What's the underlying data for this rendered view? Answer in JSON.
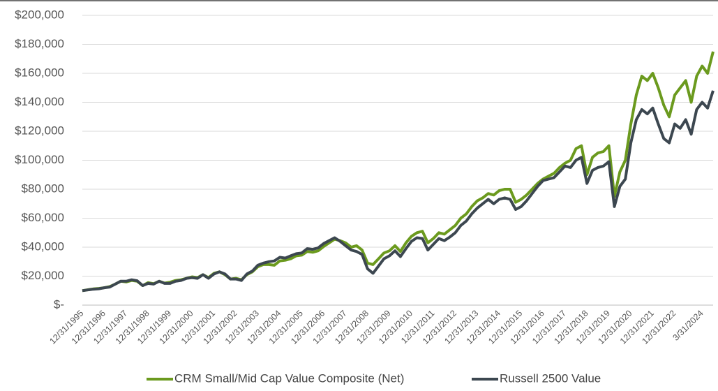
{
  "chart_data": {
    "type": "line",
    "categories": [
      "12/31/1995",
      null,
      null,
      null,
      "12/31/1996",
      null,
      null,
      null,
      "12/31/1997",
      null,
      null,
      null,
      "12/31/1998",
      null,
      null,
      null,
      "12/31/1999",
      null,
      null,
      null,
      "12/31/2000",
      null,
      null,
      null,
      "12/31/2001",
      null,
      null,
      null,
      "12/31/2002",
      null,
      null,
      null,
      "12/31/2003",
      null,
      null,
      null,
      "12/31/2004",
      null,
      null,
      null,
      "12/31/2005",
      null,
      null,
      null,
      "12/31/2006",
      null,
      null,
      null,
      "12/31/2007",
      null,
      null,
      null,
      "12/31/2008",
      null,
      null,
      null,
      "12/31/2009",
      null,
      null,
      null,
      "12/31/2010",
      null,
      null,
      null,
      "12/31/2011",
      null,
      null,
      null,
      "12/31/2012",
      null,
      null,
      null,
      "12/31/2013",
      null,
      null,
      null,
      "12/31/2014",
      null,
      null,
      null,
      "12/31/2015",
      null,
      null,
      null,
      "12/31/2016",
      null,
      null,
      null,
      "12/31/2017",
      null,
      null,
      null,
      "12/31/2018",
      null,
      null,
      null,
      "12/31/2019",
      null,
      null,
      null,
      "12/31/2020",
      null,
      null,
      null,
      "12/31/2021",
      null,
      null,
      null,
      "12/31/2022",
      null,
      null,
      null,
      null,
      "3/31/2024",
      null,
      null
    ],
    "series": [
      {
        "name": "CRM Small/Mid Cap Value Composite (Net)",
        "color": "#6b9a1e",
        "values": [
          10000,
          10600,
          11200,
          11500,
          12000,
          12800,
          14500,
          16500,
          16000,
          17000,
          16500,
          13500,
          15500,
          14800,
          16500,
          15200,
          15800,
          17000,
          17500,
          18500,
          19500,
          19000,
          21000,
          19000,
          22000,
          23000,
          21000,
          18000,
          18500,
          17500,
          21000,
          23000,
          26500,
          28000,
          28000,
          27500,
          30500,
          31000,
          32000,
          34000,
          34500,
          37000,
          36500,
          37500,
          40500,
          43000,
          45500,
          44500,
          43000,
          40000,
          41000,
          38000,
          29000,
          28000,
          32000,
          36000,
          37500,
          41000,
          37000,
          43000,
          47500,
          50000,
          51000,
          43000,
          46000,
          50000,
          49000,
          52000,
          55000,
          60000,
          63000,
          68000,
          72000,
          74000,
          77000,
          76000,
          79000,
          80000,
          80000,
          71000,
          73000,
          76000,
          80000,
          84000,
          87000,
          89000,
          91000,
          95000,
          98000,
          100000,
          108000,
          110000,
          90000,
          102000,
          105000,
          106000,
          110000,
          75000,
          92000,
          100000,
          125000,
          145000,
          158000,
          155000,
          160000,
          150000,
          138000,
          130000,
          145000,
          150000,
          155000,
          140000,
          158000,
          165000,
          160000,
          175000
        ]
      },
      {
        "name": "Russell 2500 Value",
        "color": "#3c4750",
        "values": [
          10000,
          10500,
          11000,
          11300,
          12000,
          12500,
          14500,
          16500,
          16500,
          17500,
          16800,
          13500,
          15000,
          14500,
          16500,
          15000,
          15000,
          16500,
          17000,
          18500,
          19000,
          18500,
          21000,
          18500,
          21500,
          23000,
          21500,
          18000,
          18000,
          17000,
          21500,
          23500,
          27500,
          29000,
          30000,
          30500,
          33000,
          32500,
          34000,
          35500,
          36000,
          39000,
          38500,
          39500,
          42500,
          44500,
          46500,
          44000,
          41000,
          38000,
          37000,
          35000,
          25000,
          22000,
          27000,
          32000,
          34000,
          37500,
          33500,
          39000,
          44000,
          46500,
          46000,
          38000,
          42000,
          46000,
          44500,
          47000,
          50000,
          55000,
          58000,
          63000,
          67000,
          70000,
          73000,
          70000,
          73000,
          74000,
          73000,
          66000,
          68000,
          72000,
          77000,
          82000,
          86000,
          87000,
          88000,
          92000,
          96000,
          95000,
          100000,
          102000,
          84000,
          93000,
          95000,
          96000,
          99000,
          68000,
          82000,
          87000,
          112000,
          128000,
          135000,
          132000,
          136000,
          125000,
          115000,
          112000,
          125000,
          122000,
          128000,
          118000,
          135000,
          140000,
          136000,
          148000
        ]
      }
    ],
    "ylim": [
      0,
      200000
    ],
    "yticks": [
      {
        "value": 0,
        "label": "$-"
      },
      {
        "value": 20000,
        "label": "$20,000"
      },
      {
        "value": 40000,
        "label": "$40,000"
      },
      {
        "value": 60000,
        "label": "$60,000"
      },
      {
        "value": 80000,
        "label": "$80,000"
      },
      {
        "value": 100000,
        "label": "$100,000"
      },
      {
        "value": 120000,
        "label": "$120,000"
      },
      {
        "value": 140000,
        "label": "$140,000"
      },
      {
        "value": 160000,
        "label": "$160,000"
      },
      {
        "value": 180000,
        "label": "$180,000"
      },
      {
        "value": 200000,
        "label": "$200,000"
      }
    ],
    "grid": true,
    "legend": "bottom"
  }
}
